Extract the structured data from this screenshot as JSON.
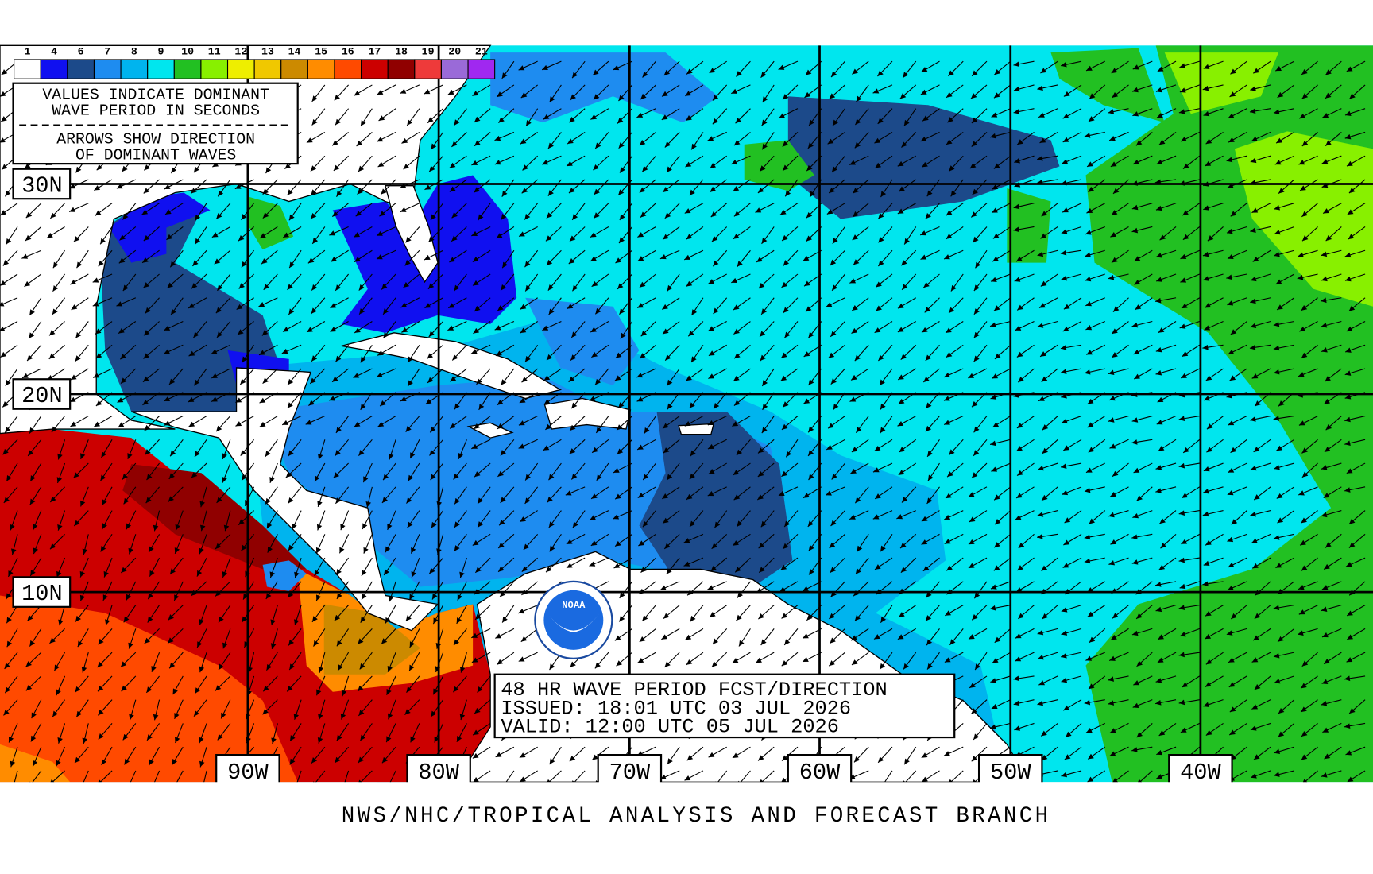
{
  "legend": {
    "scale": [
      {
        "label": "1",
        "color": "#ffffff"
      },
      {
        "label": "4",
        "color": "#1010f0"
      },
      {
        "label": "6",
        "color": "#1c4a8a"
      },
      {
        "label": "7",
        "color": "#1e8cf0"
      },
      {
        "label": "8",
        "color": "#00b4ee"
      },
      {
        "label": "9",
        "color": "#00e6ee"
      },
      {
        "label": "10",
        "color": "#22c022"
      },
      {
        "label": "11",
        "color": "#88f000"
      },
      {
        "label": "12",
        "color": "#eeee00"
      },
      {
        "label": "13",
        "color": "#f0c800"
      },
      {
        "label": "14",
        "color": "#cc8a00"
      },
      {
        "label": "15",
        "color": "#ff8c00"
      },
      {
        "label": "16",
        "color": "#ff4a00"
      },
      {
        "label": "17",
        "color": "#cc0000"
      },
      {
        "label": "18",
        "color": "#900000"
      },
      {
        "label": "19",
        "color": "#ee3a3a"
      },
      {
        "label": "20",
        "color": "#9a6ad8"
      },
      {
        "label": "21",
        "color": "#a028f0"
      }
    ],
    "note_lines": [
      "VALUES INDICATE DOMINANT",
      "WAVE PERIOD IN SECONDS",
      "ARROWS SHOW DIRECTION",
      "OF DOMINANT WAVES"
    ]
  },
  "latitude_labels": [
    "30N",
    "20N",
    "10N"
  ],
  "longitude_labels": [
    "90W",
    "80W",
    "70W",
    "60W",
    "50W",
    "40W"
  ],
  "forecast_box": {
    "lines": [
      "48 HR WAVE PERIOD FCST/DIRECTION",
      "ISSUED: 18:01 UTC 03 JUL 2026",
      "VALID:  12:00 UTC 05 JUL 2026"
    ]
  },
  "logo": "NOAA",
  "footer": "NWS/NHC/TROPICAL ANALYSIS AND FORECAST BRANCH"
}
